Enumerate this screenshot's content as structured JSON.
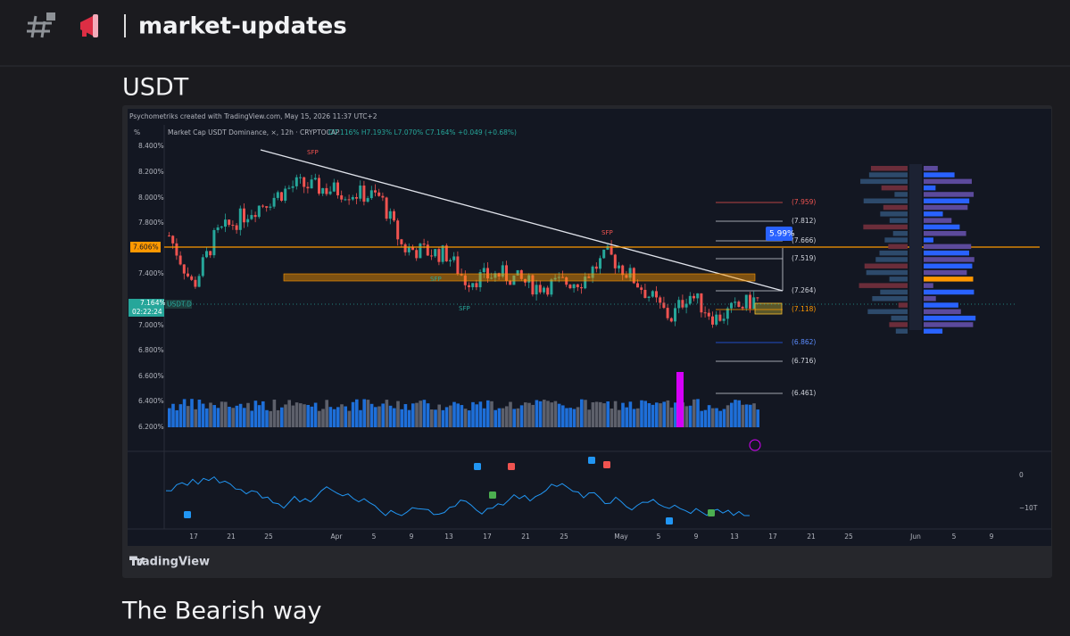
{
  "header": {
    "channel": "market-updates"
  },
  "message": {
    "title": "USDT",
    "next_title": "The Bearish way"
  },
  "chart_image": {
    "credit": "Psychometriks created with TradingView.com, May 15, 2026 11:37 UTC+2",
    "unit": "%",
    "symbol_line": "Market Cap USDT Dominance, ⨯, 12h · CRYPTOCAP",
    "ohlc": "O7.116% H7.193% L7.070% C7.164% +0.049 (+0.68%)",
    "price_labels": [
      "8.400%",
      "8.200%",
      "8.000%",
      "7.800%",
      "7.400%",
      "7.000%",
      "6.800%",
      "6.600%",
      "6.400%",
      "6.200%"
    ],
    "level_label": "7.606%",
    "current_price": "7.164%",
    "countdown": "02:22:24",
    "ticker": "USDT.D",
    "fib_levels": [
      "(7.959)",
      "(7.812)",
      "(7.666)",
      "(7.519)",
      "(7.264)",
      "(7.118)",
      "(6.862)",
      "(6.716)",
      "(6.461)"
    ],
    "target": "5.99%",
    "annotations": [
      "SFP",
      "SFP",
      "SFP",
      "SFP"
    ],
    "x_labels": [
      "17",
      "21",
      "25",
      "Apr",
      "5",
      "9",
      "13",
      "17",
      "21",
      "25",
      "May",
      "5",
      "9",
      "13",
      "17",
      "21",
      "25",
      "Jun",
      "5",
      "9"
    ],
    "osc_labels": [
      "0",
      "−10T"
    ],
    "brand": "TradingView"
  }
}
